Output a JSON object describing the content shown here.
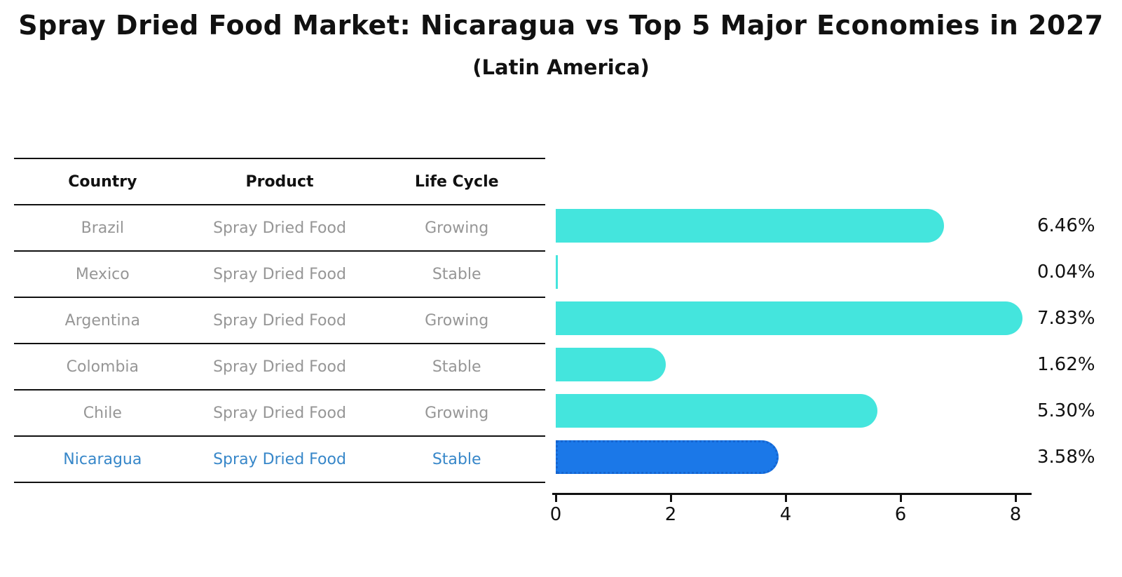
{
  "title": "Spray Dried Food Market: Nicaragua vs Top 5 Major Economies in 2027",
  "subtitle": "(Latin America)",
  "table": {
    "headers": [
      "Country",
      "Product",
      "Life Cycle"
    ],
    "rows": [
      {
        "country": "Brazil",
        "product": "Spray Dried Food",
        "life_cycle": "Growing",
        "highlight": false
      },
      {
        "country": "Mexico",
        "product": "Spray Dried Food",
        "life_cycle": "Stable",
        "highlight": false
      },
      {
        "country": "Argentina",
        "product": "Spray Dried Food",
        "life_cycle": "Growing",
        "highlight": false
      },
      {
        "country": "Colombia",
        "product": "Spray Dried Food",
        "life_cycle": "Stable",
        "highlight": false
      },
      {
        "country": "Chile",
        "product": "Spray Dried Food",
        "life_cycle": "Growing",
        "highlight": false
      },
      {
        "country": "Nicaragua",
        "product": "Spray Dried Food",
        "life_cycle": "Stable",
        "highlight": true
      }
    ]
  },
  "chart_data": {
    "type": "bar",
    "orientation": "horizontal",
    "title": "Spray Dried Food Market: Nicaragua vs Top 5 Major Economies in 2027 (Latin America)",
    "categories": [
      "Brazil",
      "Mexico",
      "Argentina",
      "Colombia",
      "Chile",
      "Nicaragua"
    ],
    "values": [
      6.46,
      0.04,
      7.83,
      1.62,
      5.3,
      3.58
    ],
    "value_labels": [
      "6.46%",
      "0.04%",
      "7.83%",
      "1.62%",
      "5.30%",
      "3.58%"
    ],
    "unit": "percent",
    "xticks": [
      0,
      2,
      4,
      6,
      8
    ],
    "xlim": [
      0,
      8.3
    ],
    "grid": false,
    "legend": false,
    "highlight_index": 5,
    "bar_color": "#44E5DD",
    "highlight_color": "#1B78E8",
    "highlight_border_color": "#1565D0",
    "highlight_text_color": "#3787C9",
    "text_color_muted": "#969696",
    "axis_color": "#111111"
  }
}
